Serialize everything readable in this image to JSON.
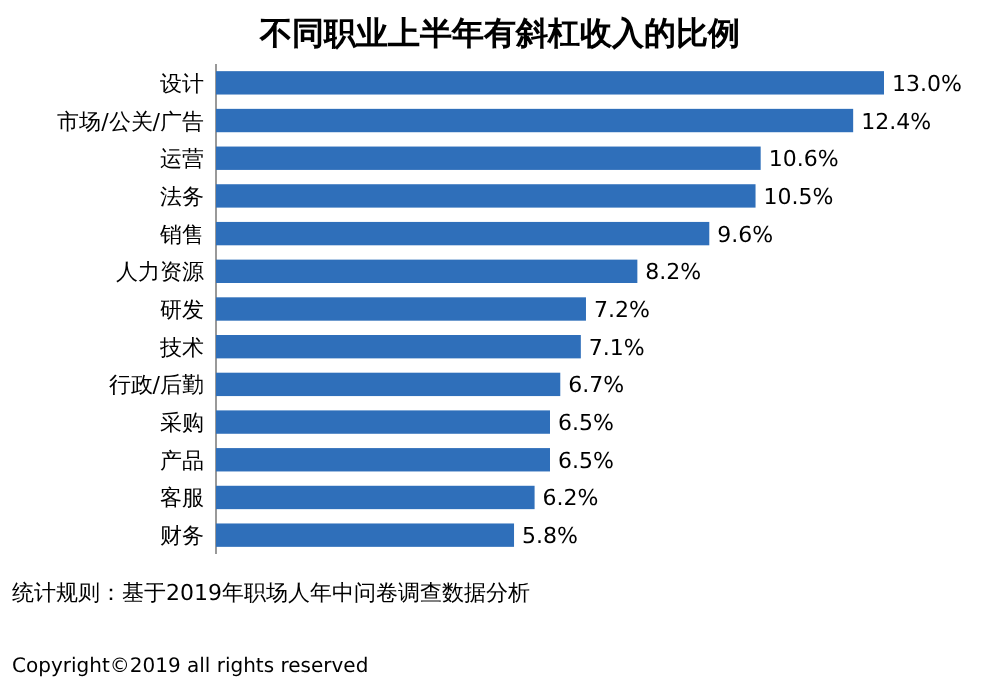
{
  "chart_data": {
    "type": "bar",
    "orientation": "horizontal",
    "title": "不同职业上半年有斜杠收入的比例",
    "categories": [
      "设计",
      "市场/公关/广告",
      "运营",
      "法务",
      "销售",
      "人力资源",
      "研发",
      "技术",
      "行政/后勤",
      "采购",
      "产品",
      "客服",
      "财务"
    ],
    "values": [
      13.0,
      12.4,
      10.6,
      10.5,
      9.6,
      8.2,
      7.2,
      7.1,
      6.7,
      6.5,
      6.5,
      6.2,
      5.8
    ],
    "value_labels": [
      "13.0%",
      "12.4%",
      "10.6%",
      "10.5%",
      "9.6%",
      "8.2%",
      "7.2%",
      "7.1%",
      "6.7%",
      "6.5%",
      "6.5%",
      "6.2%",
      "5.8%"
    ],
    "color": "#2f6fba",
    "annotations": [
      "统计规则：基于2019年职场人年中问卷调查数据分析",
      "Copyright©2019 all rights reserved"
    ]
  }
}
